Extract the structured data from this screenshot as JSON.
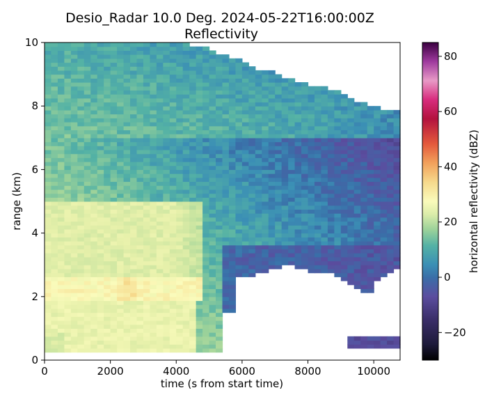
{
  "figure": {
    "title_line1": "Desio_Radar 10.0 Deg. 2024-05-22T16:00:00Z",
    "title_line2": "Reflectivity"
  },
  "chart_data": {
    "type": "heatmap",
    "title": "Desio_Radar 10.0 Deg. 2024-05-22T16:00:00Z",
    "subtitle": "Reflectivity",
    "xlabel": "time (s from start time)",
    "ylabel": "range (km)",
    "xlim": [
      0,
      10800
    ],
    "ylim": [
      0,
      10
    ],
    "xticks": [
      0,
      2000,
      4000,
      6000,
      8000,
      10000
    ],
    "yticks": [
      0,
      2,
      4,
      6,
      8,
      10
    ],
    "grid": false,
    "colormap": "HomeyerRainbow-like (dark navy → purple → blue → teal → green → pale yellow → orange → red → magenta → pink → dark purple)",
    "colorbar": {
      "label": "horizontal reflectivity (dBZ)",
      "range": [
        -30,
        85
      ],
      "ticks": [
        -20,
        0,
        20,
        40,
        60,
        80
      ]
    },
    "echo_top_km": [
      [
        0,
        10.0
      ],
      [
        600,
        10.0
      ],
      [
        1200,
        9.98
      ],
      [
        1800,
        10.0
      ],
      [
        2400,
        10.0
      ],
      [
        3000,
        10.0
      ],
      [
        3600,
        10.0
      ],
      [
        4200,
        9.98
      ],
      [
        4600,
        9.9
      ],
      [
        5000,
        9.8
      ],
      [
        5400,
        9.6
      ],
      [
        5800,
        9.5
      ],
      [
        6200,
        9.3
      ],
      [
        6600,
        9.1
      ],
      [
        7000,
        9.05
      ],
      [
        7400,
        8.85
      ],
      [
        7800,
        8.75
      ],
      [
        8200,
        8.65
      ],
      [
        8600,
        8.55
      ],
      [
        9000,
        8.4
      ],
      [
        9400,
        8.2
      ],
      [
        9800,
        8.05
      ],
      [
        10200,
        7.95
      ],
      [
        10500,
        7.9
      ],
      [
        10800,
        7.85
      ]
    ],
    "echo_base_km": [
      [
        0,
        0.3
      ],
      [
        600,
        0.3
      ],
      [
        1200,
        0.3
      ],
      [
        2400,
        0.3
      ],
      [
        3600,
        0.3
      ],
      [
        4800,
        0.3
      ],
      [
        5300,
        0.3
      ],
      [
        5600,
        2.6
      ],
      [
        6000,
        2.6
      ],
      [
        6500,
        2.7
      ],
      [
        7000,
        2.9
      ],
      [
        7500,
        3.0
      ],
      [
        8000,
        2.8
      ],
      [
        8500,
        2.75
      ],
      [
        9000,
        2.6
      ],
      [
        9500,
        2.2
      ],
      [
        9800,
        2.05
      ],
      [
        10200,
        2.6
      ],
      [
        10800,
        3.0
      ]
    ],
    "regions_dbz": [
      {
        "t": [
          0,
          4800
        ],
        "r": [
          1.9,
          2.6
        ],
        "dbz": 25
      },
      {
        "t": [
          0,
          4000
        ],
        "r": [
          0.3,
          2.0
        ],
        "dbz": 22
      },
      {
        "t": [
          500,
          4500
        ],
        "r": [
          2.6,
          5.0
        ],
        "dbz": 19
      },
      {
        "t": [
          0,
          3500
        ],
        "r": [
          5.0,
          7.0
        ],
        "dbz": 15
      },
      {
        "t": [
          0,
          10800
        ],
        "r": [
          7.0,
          10.0
        ],
        "dbz": 5
      },
      {
        "t": [
          6000,
          10800
        ],
        "r": [
          3.0,
          8.0
        ],
        "dbz": 0
      },
      {
        "t": [
          9300,
          10800
        ],
        "r": [
          0.35,
          0.75
        ],
        "dbz": -8
      }
    ]
  }
}
